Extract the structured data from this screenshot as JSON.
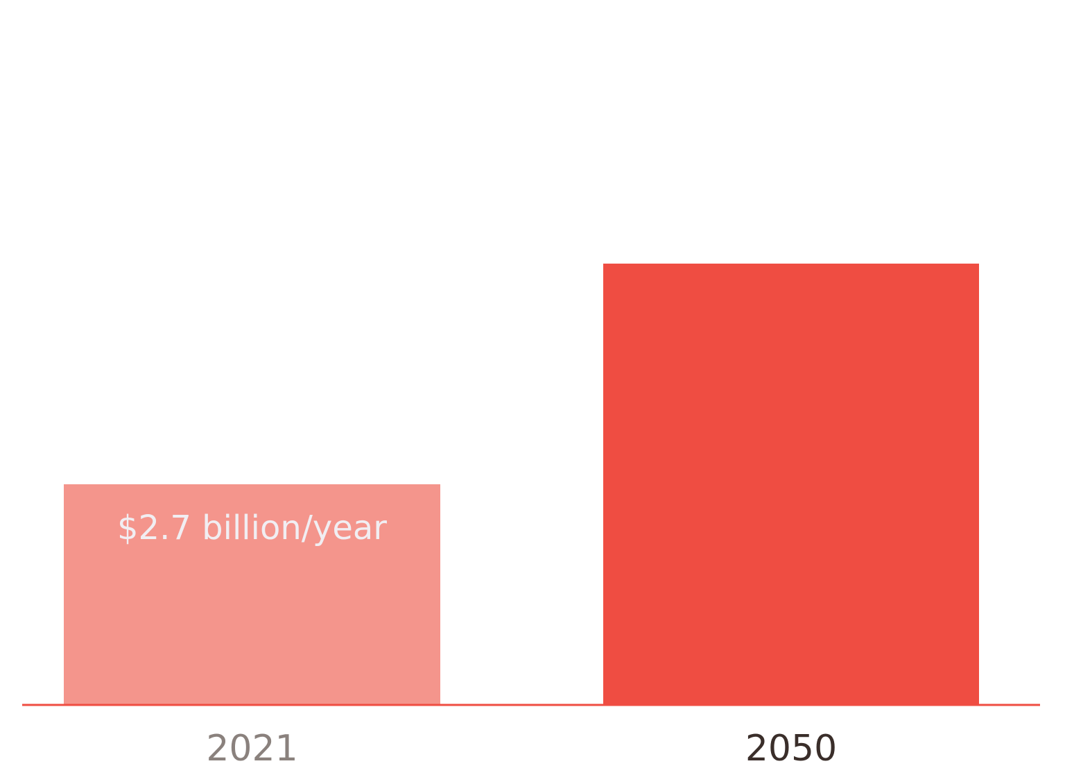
{
  "chart_data": {
    "type": "bar",
    "categories": [
      "2021",
      "2050"
    ],
    "values": [
      2.7,
      5.4
    ],
    "value_labels": [
      "$2.7 billion/year",
      null
    ],
    "colors": [
      "#f4958c",
      "#ef4d42"
    ],
    "category_label_colors": [
      "#8a817d",
      "#3a2e2a"
    ],
    "axis_color": "#ef4d42",
    "ylim": [
      0,
      8.6
    ]
  }
}
